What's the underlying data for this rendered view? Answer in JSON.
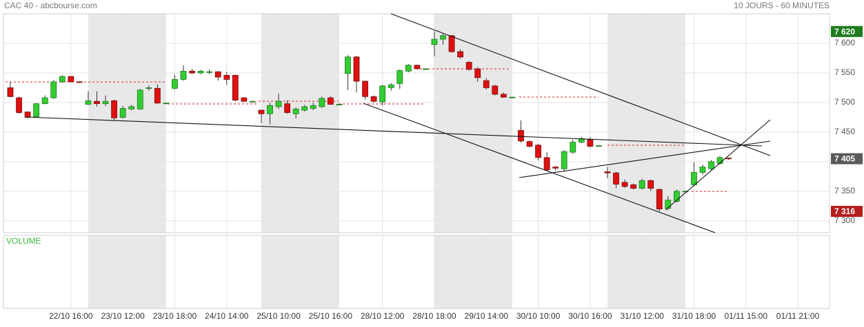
{
  "chart_data": {
    "type": "candlestick",
    "title": "CAC 40 - abcbourse.com",
    "subtitle": "10 JOURS - 60 MINUTES",
    "volume_label": "VOLUME",
    "categories": [
      null,
      null,
      null,
      null,
      null,
      null,
      null,
      "22/10 16:00",
      null,
      null,
      null,
      null,
      null,
      "23/10 12:00",
      null,
      null,
      null,
      null,
      null,
      "23/10 18:00",
      null,
      null,
      null,
      null,
      null,
      "24/10 14:00",
      null,
      null,
      null,
      null,
      null,
      "25/10 10:00",
      null,
      null,
      null,
      null,
      null,
      "25/10 16:00",
      null,
      null,
      null,
      null,
      null,
      "28/10 12:00",
      null,
      null,
      null,
      null,
      null,
      "28/10 18:00",
      null,
      null,
      null,
      null,
      null,
      "29/10 14:00",
      null,
      null,
      null,
      null,
      null,
      "30/10 10:00",
      null,
      null,
      null,
      null,
      null,
      "30/10 16:00",
      null,
      null,
      null,
      null,
      null,
      "31/10 12:00",
      null,
      null,
      null,
      null,
      null,
      "31/10 18:00",
      null,
      null,
      null,
      null,
      null,
      "01/11 15:00",
      null,
      null,
      null,
      null,
      null,
      "01/11 21:00",
      null,
      null,
      null
    ],
    "open": [
      7525,
      7508,
      7484,
      7476,
      7498,
      7508,
      7535,
      7544,
      7535,
      7497,
      7502,
      7498,
      7503,
      7475,
      7489,
      7489,
      7524,
      7524,
      7499,
      7524,
      7539,
      7553,
      7550,
      7552,
      7552,
      7546,
      7546,
      7508,
      7502,
      7487,
      7481,
      7493,
      7498,
      7481,
      7487,
      7490,
      7493,
      7508,
      7497,
      7549,
      7577,
      7536,
      7510,
      7501,
      7525,
      7532,
      7553,
      7563,
      7557,
      7598,
      7607,
      7613,
      7586,
      7568,
      7557,
      7537,
      7528,
      7514,
      7509,
      7453,
      7434,
      7428,
      7407,
      7391,
      7388,
      7416,
      7433,
      7437,
      7427,
      7383,
      7381,
      7365,
      7361,
      7355,
      7368,
      7353,
      7321,
      7333,
      7350,
      7361,
      7382,
      7388,
      7397,
      7406,
      null,
      null,
      null,
      null,
      null,
      null,
      null,
      null,
      null,
      null,
      null
    ],
    "high": [
      7535,
      7510,
      7485,
      7499,
      7512,
      7538,
      7546,
      7545,
      7536,
      7519,
      7519,
      7512,
      7505,
      7494,
      7496,
      7523,
      7529,
      7531,
      7500,
      7547,
      7563,
      7557,
      7555,
      7556,
      7553,
      7552,
      7547,
      7509,
      7503,
      7488,
      7500,
      7515,
      7504,
      7492,
      7496,
      7500,
      7510,
      7511,
      7498,
      7580,
      7579,
      7537,
      7512,
      7530,
      7533,
      7556,
      7565,
      7564,
      7558,
      7620,
      7616,
      7614,
      7590,
      7570,
      7560,
      7541,
      7530,
      7517,
      7510,
      7470,
      7436,
      7430,
      7416,
      7393,
      7420,
      7437,
      7442,
      7441,
      7428,
      7391,
      7383,
      7370,
      7363,
      7371,
      7370,
      7355,
      7342,
      7353,
      7351,
      7399,
      7395,
      7403,
      7410,
      7407,
      null,
      null,
      null,
      null,
      null,
      null,
      null,
      null,
      null,
      null,
      null
    ],
    "low": [
      7509,
      7481,
      7473,
      7474,
      7497,
      7506,
      7533,
      7534,
      7533,
      7496,
      7493,
      7494,
      7470,
      7473,
      7487,
      7488,
      7520,
      7498,
      7498,
      7522,
      7537,
      7548,
      7548,
      7548,
      7537,
      7530,
      7502,
      7501,
      7501,
      7465,
      7463,
      7489,
      7481,
      7473,
      7485,
      7487,
      7491,
      7496,
      7496,
      7521,
      7517,
      7505,
      7500,
      7495,
      7520,
      7523,
      7551,
      7556,
      7556,
      7578,
      7598,
      7584,
      7574,
      7554,
      7535,
      7522,
      7512,
      7508,
      7508,
      7432,
      7424,
      7402,
      7384,
      7385,
      7384,
      7413,
      7431,
      7424,
      7426,
      7372,
      7355,
      7356,
      7353,
      7353,
      7350,
      7316,
      7318,
      7331,
      7349,
      7358,
      7378,
      7386,
      7395,
      7403,
      null,
      null,
      null,
      null,
      null,
      null,
      null,
      null,
      null,
      null,
      null
    ],
    "close": [
      7510,
      7483,
      7475,
      7498,
      7508,
      7535,
      7544,
      7535,
      7534,
      7503,
      7498,
      7502,
      7474,
      7490,
      7493,
      7521,
      7525,
      7499,
      7499,
      7539,
      7553,
      7550,
      7553,
      7552,
      7543,
      7539,
      7504,
      7502,
      7502,
      7481,
      7495,
      7502,
      7483,
      7489,
      7493,
      7495,
      7507,
      7497,
      7497,
      7577,
      7536,
      7510,
      7502,
      7528,
      7530,
      7554,
      7563,
      7557,
      7557,
      7607,
      7613,
      7586,
      7577,
      7556,
      7542,
      7525,
      7514,
      7509,
      7509,
      7435,
      7426,
      7407,
      7386,
      7389,
      7417,
      7433,
      7439,
      7426,
      7427,
      7381,
      7362,
      7358,
      7355,
      7368,
      7355,
      7320,
      7335,
      7350,
      7350,
      7382,
      7391,
      7400,
      7407,
      7405,
      null,
      null,
      null,
      null,
      null,
      null,
      null,
      null,
      null,
      null,
      null
    ],
    "up_color": "#33cc33",
    "down_color": "#dd1111",
    "ylim": [
      7280,
      7650
    ],
    "yticks": [
      {
        "value": 7300,
        "label": "7 300"
      },
      {
        "value": 7350,
        "label": "7 350"
      },
      {
        "value": 7400,
        "label": "7 400"
      },
      {
        "value": 7450,
        "label": "7 450"
      },
      {
        "value": 7500,
        "label": "7 500"
      },
      {
        "value": 7550,
        "label": "7 550"
      },
      {
        "value": 7600,
        "label": "7 600"
      }
    ],
    "grid": true,
    "price_markers": [
      {
        "value": 7620,
        "label": "7 620",
        "color": "#1e7b1e"
      },
      {
        "value": 7405,
        "label": "7 405",
        "color": "#5a5a5a"
      },
      {
        "value": 7316,
        "label": "7 316",
        "color": "#b51c1c"
      }
    ]
  }
}
